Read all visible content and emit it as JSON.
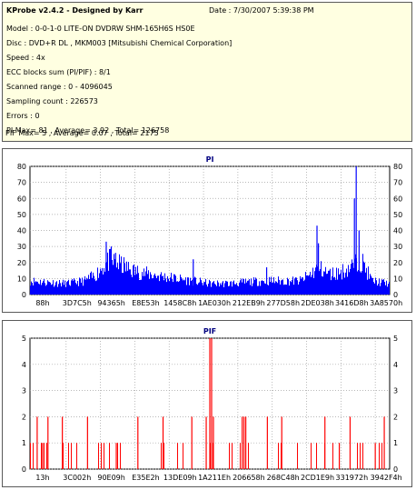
{
  "info": {
    "title": "KProbe v2.4.2 - Designed by Karr",
    "date": "Date : 7/30/2007 5:39:38 PM",
    "lines": [
      "Model : 0-0-1-0 LITE-ON DVDRW SHM-165H6S HS0E",
      "Disc : DVD+R DL , MKM003 [Mitsubishi Chemical Corporation]",
      "Speed : 4x",
      "ECC blocks sum (PI/PIF) : 8/1",
      "Scanned range : 0 - 4096045",
      "Sampling count : 226573",
      "Errors : 0",
      "PI Max= 81 , Average= 3.92 , Total= 126758",
      "PIF Max= 5 , Average= 0.07 , Total= 2175"
    ]
  },
  "chart_data": [
    {
      "type": "bar",
      "title": "PI",
      "color": "#0000ff",
      "ylim": [
        0,
        80
      ],
      "yticks": [
        0,
        10,
        20,
        30,
        40,
        50,
        60,
        70,
        80
      ],
      "xtick_labels": [
        "88h",
        "3D7C5h",
        "94365h",
        "E8E53h",
        "1458C8h",
        "1AE030h",
        "212EB9h",
        "277D58h",
        "2DE038h",
        "3416D8h",
        "3A8570h"
      ],
      "grid": true,
      "profile": [
        [
          0,
          10
        ],
        [
          0.05,
          9
        ],
        [
          0.1,
          8
        ],
        [
          0.15,
          10
        ],
        [
          0.18,
          14
        ],
        [
          0.2,
          20
        ],
        [
          0.22,
          25
        ],
        [
          0.25,
          22
        ],
        [
          0.28,
          18
        ],
        [
          0.31,
          16
        ],
        [
          0.35,
          14
        ],
        [
          0.4,
          12
        ],
        [
          0.45,
          10
        ],
        [
          0.5,
          8
        ],
        [
          0.55,
          8
        ],
        [
          0.6,
          9
        ],
        [
          0.65,
          10
        ],
        [
          0.7,
          10
        ],
        [
          0.75,
          10
        ],
        [
          0.78,
          15
        ],
        [
          0.8,
          20
        ],
        [
          0.83,
          15
        ],
        [
          0.86,
          16
        ],
        [
          0.89,
          20
        ],
        [
          0.92,
          25
        ],
        [
          0.95,
          10
        ],
        [
          1.0,
          8
        ]
      ],
      "spikes": [
        {
          "x": 0.212,
          "value": 33
        },
        {
          "x": 0.226,
          "value": 30
        },
        {
          "x": 0.238,
          "value": 26
        },
        {
          "x": 0.454,
          "value": 22
        },
        {
          "x": 0.658,
          "value": 17
        },
        {
          "x": 0.798,
          "value": 43
        },
        {
          "x": 0.802,
          "value": 32
        },
        {
          "x": 0.902,
          "value": 60
        },
        {
          "x": 0.907,
          "value": 81
        },
        {
          "x": 0.915,
          "value": 40
        }
      ]
    },
    {
      "type": "bar",
      "title": "PIF",
      "color": "#ff0000",
      "ylim": [
        0,
        5
      ],
      "yticks": [
        0,
        1,
        2,
        3,
        4,
        5
      ],
      "xtick_labels": [
        "13h",
        "3C002h",
        "90E09h",
        "E35E2h",
        "13DE09h",
        "1A211Eh",
        "206658h",
        "268C48h",
        "2CD1E9h",
        "331972h",
        "3942F4h"
      ],
      "grid": true,
      "spikes": [
        {
          "x": 0.5,
          "value": 5
        },
        {
          "x": 0.505,
          "value": 5
        },
        {
          "x": 0.49,
          "value": 2
        },
        {
          "x": 0.51,
          "value": 2
        },
        {
          "x": 0.59,
          "value": 2
        },
        {
          "x": 0.595,
          "value": 2
        },
        {
          "x": 0.6,
          "value": 2
        },
        {
          "x": 0.02,
          "value": 2
        },
        {
          "x": 0.035,
          "value": 1
        },
        {
          "x": 0.05,
          "value": 2
        },
        {
          "x": 0.09,
          "value": 2
        },
        {
          "x": 0.16,
          "value": 2
        },
        {
          "x": 0.24,
          "value": 1
        },
        {
          "x": 0.3,
          "value": 2
        },
        {
          "x": 0.37,
          "value": 2
        },
        {
          "x": 0.45,
          "value": 2
        },
        {
          "x": 0.66,
          "value": 2
        },
        {
          "x": 0.7,
          "value": 2
        },
        {
          "x": 0.82,
          "value": 2
        },
        {
          "x": 0.86,
          "value": 1
        },
        {
          "x": 0.89,
          "value": 2
        },
        {
          "x": 0.96,
          "value": 1
        },
        {
          "x": 0.985,
          "value": 2
        }
      ]
    }
  ]
}
